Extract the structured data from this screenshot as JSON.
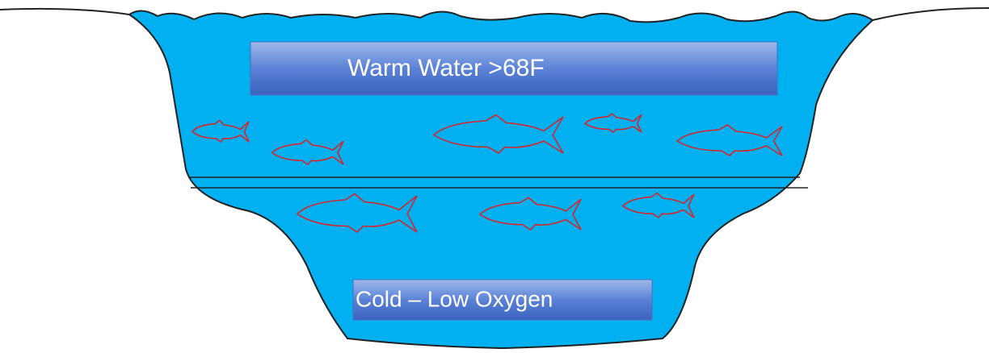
{
  "labels": {
    "warm": "Warm Water >68F",
    "cold": "Cold – Low Oxygen"
  }
}
